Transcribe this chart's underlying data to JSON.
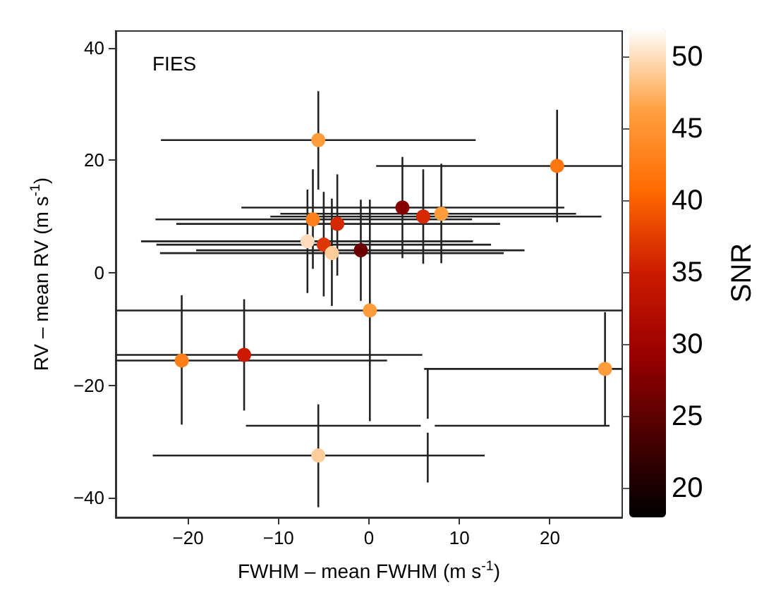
{
  "chart_data": {
    "type": "scatter",
    "xlabel": "FWHM – mean FWHM (m s$^{-1}$)",
    "ylabel": "RV – mean RV (m s$^{-1}$)",
    "clabel": "SNR",
    "annotations": [
      "FIES"
    ],
    "x": [
      -5.6,
      20.8,
      3.7,
      6.0,
      8.0,
      -6.2,
      -3.5,
      -6.8,
      -5.0,
      -4.1,
      -0.9,
      0.1,
      -20.7,
      -13.8,
      26.1,
      6.5,
      -5.6
    ],
    "values": [
      23.6,
      19.0,
      11.6,
      10.0,
      10.5,
      9.5,
      8.7,
      5.6,
      5.0,
      3.5,
      4.0,
      -6.7,
      -15.6,
      -14.6,
      -17.1,
      -27.2,
      -32.5
    ],
    "errors": [
      [
        14.8,
        32.3
      ],
      [
        9.0,
        29.0
      ],
      [
        2.6,
        20.6
      ],
      [
        1.6,
        18.4
      ],
      [
        1.7,
        19.4
      ],
      [
        0.7,
        18.4
      ],
      [
        -0.5,
        17.5
      ],
      [
        -3.6,
        14.8
      ],
      [
        -4.2,
        14.4
      ],
      [
        -5.9,
        13.2
      ],
      [
        -5.0,
        13.0
      ],
      [
        -26.4,
        13.0
      ],
      [
        -27.0,
        -4.0
      ],
      [
        -24.5,
        -4.7
      ],
      [
        -27.2,
        -7.0
      ],
      [
        -37.3,
        -17.1
      ],
      [
        -41.7,
        -23.4
      ]
    ],
    "xerrors": [
      [
        -23.0,
        11.8
      ],
      [
        0.8,
        28
      ],
      [
        -14.1,
        21.6
      ],
      [
        -10.9,
        25.7
      ],
      [
        -9.8,
        22.9
      ],
      [
        -23.6,
        11.4
      ],
      [
        -21.3,
        14.5
      ],
      [
        -25.2,
        11.5
      ],
      [
        -23.5,
        13.5
      ],
      [
        -23.1,
        14.9
      ],
      [
        -19.1,
        17.2
      ],
      [
        -28,
        28
      ],
      [
        -28,
        2.0
      ],
      [
        -28,
        5.9
      ],
      [
        6.1,
        28
      ],
      [
        -13.6,
        26.6
      ],
      [
        -23.9,
        12.8
      ]
    ],
    "cvalues": [
      46,
      42,
      28,
      36,
      46,
      43,
      36,
      50,
      37,
      49,
      26,
      46,
      43,
      35,
      46,
      52,
      49
    ],
    "clim": [
      18,
      52
    ],
    "cticks": [
      20,
      25,
      30,
      35,
      40,
      45,
      50
    ],
    "xlim": [
      -28,
      28
    ],
    "ylim": [
      -43.5,
      43
    ],
    "xticks": [
      -20,
      -10,
      0,
      10,
      20
    ],
    "yticks": [
      -40,
      -20,
      0,
      20,
      40
    ],
    "marker": "circle",
    "grid": false
  }
}
